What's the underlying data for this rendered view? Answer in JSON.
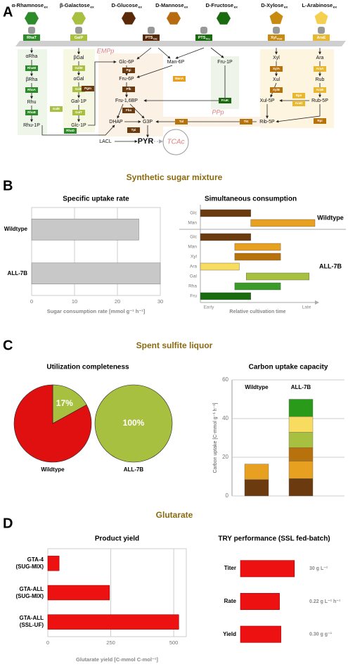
{
  "panel_a": {
    "letter": "A",
    "substrates": [
      {
        "name": "α-Rhamnose",
        "sub": "ex",
        "color": "#2e8b2a"
      },
      {
        "name": "β-Galactose",
        "sub": "ex",
        "color": "#a8c040"
      },
      {
        "name": "D-Glucose",
        "sub": "ex",
        "color": "#5a2a08"
      },
      {
        "name": "D-Mannose",
        "sub": "ex",
        "color": "#b86a10"
      },
      {
        "name": "D-Fructose",
        "sub": "ex",
        "color": "#1a6a10"
      },
      {
        "name": "D-Xylose",
        "sub": "ex",
        "color": "#c88a10"
      },
      {
        "name": "L-Arabinose",
        "sub": "ex",
        "color": "#f5d050"
      }
    ],
    "transporters": [
      {
        "name": "RhaT",
        "color": "#2e8b2a"
      },
      {
        "name": "GalP",
        "color": "#a8c040"
      },
      {
        "name": "PTS",
        "sub": "Glc",
        "color": "#5a2a08"
      },
      {
        "name": "PTS",
        "sub": "Fru",
        "color": "#1a6a10"
      },
      {
        "name": "Xyl",
        "sub": "FGH",
        "color": "#c88a10"
      },
      {
        "name": "AraE",
        "color": "#e8b830"
      }
    ],
    "metabolites": [
      "αRha",
      "βRha",
      "Rhu",
      "Rhu-1P",
      "βGal",
      "αGal",
      "Gal-1P",
      "Glc-1P",
      "Glc-6P",
      "Fru-6P",
      "Fru-1,6BP",
      "DHAP",
      "G3P",
      "Man-6P",
      "Fru-1P",
      "Xyl",
      "Xul",
      "Xul-5P",
      "Ara",
      "Rub",
      "Rub-5P",
      "Rib-5P",
      "LACL",
      "PYR",
      "TCAc"
    ],
    "enzymes": [
      {
        "name": "RhaM",
        "color": "#2e8b2a"
      },
      {
        "name": "RhaA",
        "color": "#2e8b2a"
      },
      {
        "name": "RhaB",
        "color": "#2e8b2a"
      },
      {
        "name": "RhaD",
        "color": "#2e8b2a"
      },
      {
        "name": "GalM",
        "color": "#a8c040"
      },
      {
        "name": "GalK",
        "color": "#a8c040"
      },
      {
        "name": "GalT",
        "color": "#a8c040"
      },
      {
        "name": "GalE",
        "color": "#a8c040"
      },
      {
        "name": "Pgm",
        "color": "#6b3a0e"
      },
      {
        "name": "Pgi",
        "color": "#6b3a0e"
      },
      {
        "name": "Pfk",
        "color": "#6b3a0e"
      },
      {
        "name": "Fba",
        "color": "#6b3a0e"
      },
      {
        "name": "Tpi",
        "color": "#6b3a0e"
      },
      {
        "name": "ManA",
        "color": "#e8a020"
      },
      {
        "name": "FruK",
        "color": "#1a6a10"
      },
      {
        "name": "Tal",
        "color": "#b8720c"
      },
      {
        "name": "Tkt",
        "color": "#b8720c"
      },
      {
        "name": "XylA",
        "color": "#b8720c"
      },
      {
        "name": "XylB",
        "color": "#b8720c"
      },
      {
        "name": "Rpe",
        "color": "#e8b830"
      },
      {
        "name": "AraD",
        "color": "#e8b830"
      },
      {
        "name": "AraA",
        "color": "#e8b830"
      },
      {
        "name": "AraB",
        "color": "#e8b830"
      },
      {
        "name": "Rpi",
        "color": "#b8720c"
      }
    ],
    "pathway_labels": [
      "EMPp",
      "PPp"
    ]
  },
  "sections": [
    {
      "letter": "B",
      "title": "Synthetic sugar mixture"
    },
    {
      "letter": "C",
      "title": "Spent sulfite liquor"
    },
    {
      "letter": "D",
      "title": "Glutarate"
    }
  ],
  "chart_data": [
    {
      "type": "bar",
      "title": "Specific uptake rate",
      "categories": [
        "Wildtype",
        "ALL-7B"
      ],
      "values": [
        25,
        30
      ],
      "color": "#c8c8c8",
      "edgecolor": "#888888",
      "xlim": [
        0,
        30
      ],
      "xticks": [
        0,
        10,
        20,
        30
      ],
      "xlabel": "Sugar consumption rate [mmol g⁻¹ h⁻¹]",
      "grid": true
    },
    {
      "type": "gantt",
      "title": "Simultaneous consumption",
      "xlim": [
        0,
        10
      ],
      "xlabel": "Relative cultivation time",
      "start_label": "Early",
      "end_label": "Late",
      "groups": [
        {
          "name": "Wildtype",
          "rows": [
            {
              "name": "Glc",
              "color": "#6b3a0e",
              "start": 0,
              "end": 4.4
            },
            {
              "name": "Man",
              "color": "#e8a020",
              "start": 4.4,
              "end": 10
            }
          ]
        },
        {
          "name": "ALL-7B",
          "rows": [
            {
              "name": "Glc",
              "color": "#6b3a0e",
              "start": 0,
              "end": 4.4
            },
            {
              "name": "Man",
              "color": "#e8a020",
              "start": 3,
              "end": 7
            },
            {
              "name": "Xyl",
              "color": "#b8720c",
              "start": 3,
              "end": 7
            },
            {
              "name": "Ara",
              "color": "#f8dc60",
              "start": 0,
              "end": 3.4
            },
            {
              "name": "Gal",
              "color": "#a8c040",
              "start": 4,
              "end": 9.5
            },
            {
              "name": "Rha",
              "color": "#3a9a2a",
              "start": 3,
              "end": 7
            },
            {
              "name": "Fru",
              "color": "#1a6a10",
              "start": 0,
              "end": 4.4
            }
          ]
        }
      ]
    },
    {
      "type": "pie",
      "title": "Utilization completeness",
      "pies": [
        {
          "label": "Wildtype",
          "values": [
            17,
            83
          ],
          "value_labels": [
            "17%",
            null
          ],
          "colors": [
            "#a8c040",
            "#e01010"
          ]
        },
        {
          "label": "ALL-7B",
          "values": [
            100
          ],
          "value_labels": [
            "100%"
          ],
          "colors": [
            "#a8c040"
          ]
        }
      ]
    },
    {
      "type": "bar",
      "stacked": true,
      "title": "Carbon uptake capacity",
      "categories": [
        "Wildtype",
        "ALL-7B"
      ],
      "ylabel": "Carbon uptake [C-mmol g⁻¹ h⁻¹]",
      "ylim": [
        0,
        60
      ],
      "yticks": [
        0,
        20,
        40,
        60
      ],
      "grid": true,
      "series": [
        {
          "color": "#6b3a0e",
          "values": [
            8.5,
            9
          ]
        },
        {
          "color": "#e8a020",
          "values": [
            8,
            9
          ]
        },
        {
          "color": "#b8720c",
          "values": [
            null,
            7
          ]
        },
        {
          "color": "#a8c040",
          "values": [
            null,
            8
          ]
        },
        {
          "color": "#f8dc60",
          "values": [
            null,
            8
          ]
        },
        {
          "color": "#2a9a1a",
          "values": [
            null,
            9
          ]
        }
      ]
    },
    {
      "type": "bar",
      "title": "Product yield",
      "categories": [
        "GTA-4\n(SUG-MIX)",
        "GTA-ALL\n(SUG-MIX)",
        "GTA-ALL\n(SSL-UF)"
      ],
      "values": [
        45,
        245,
        520
      ],
      "color": "#ee1111",
      "edgecolor": "#a00000",
      "xlim": [
        0,
        550
      ],
      "xticks": [
        0,
        250,
        500
      ],
      "xlabel": "Glutarate yield [C-mmol C-mol⁻¹]",
      "grid": true
    },
    {
      "type": "bar",
      "title": "TRY performance (SSL fed-batch)",
      "categories": [
        "Titer",
        "Rate",
        "Yield"
      ],
      "values": [
        30,
        0.22,
        0.3
      ],
      "value_labels": [
        "30 g L⁻¹",
        "0.22 g L⁻¹ h⁻¹",
        "0.30 g g⁻¹"
      ],
      "xlims": [
        [
          0,
          37.5
        ],
        [
          0,
          0.38
        ],
        [
          0,
          0.5
        ]
      ],
      "color": "#ee1111",
      "edgecolor": "#a00000"
    }
  ]
}
